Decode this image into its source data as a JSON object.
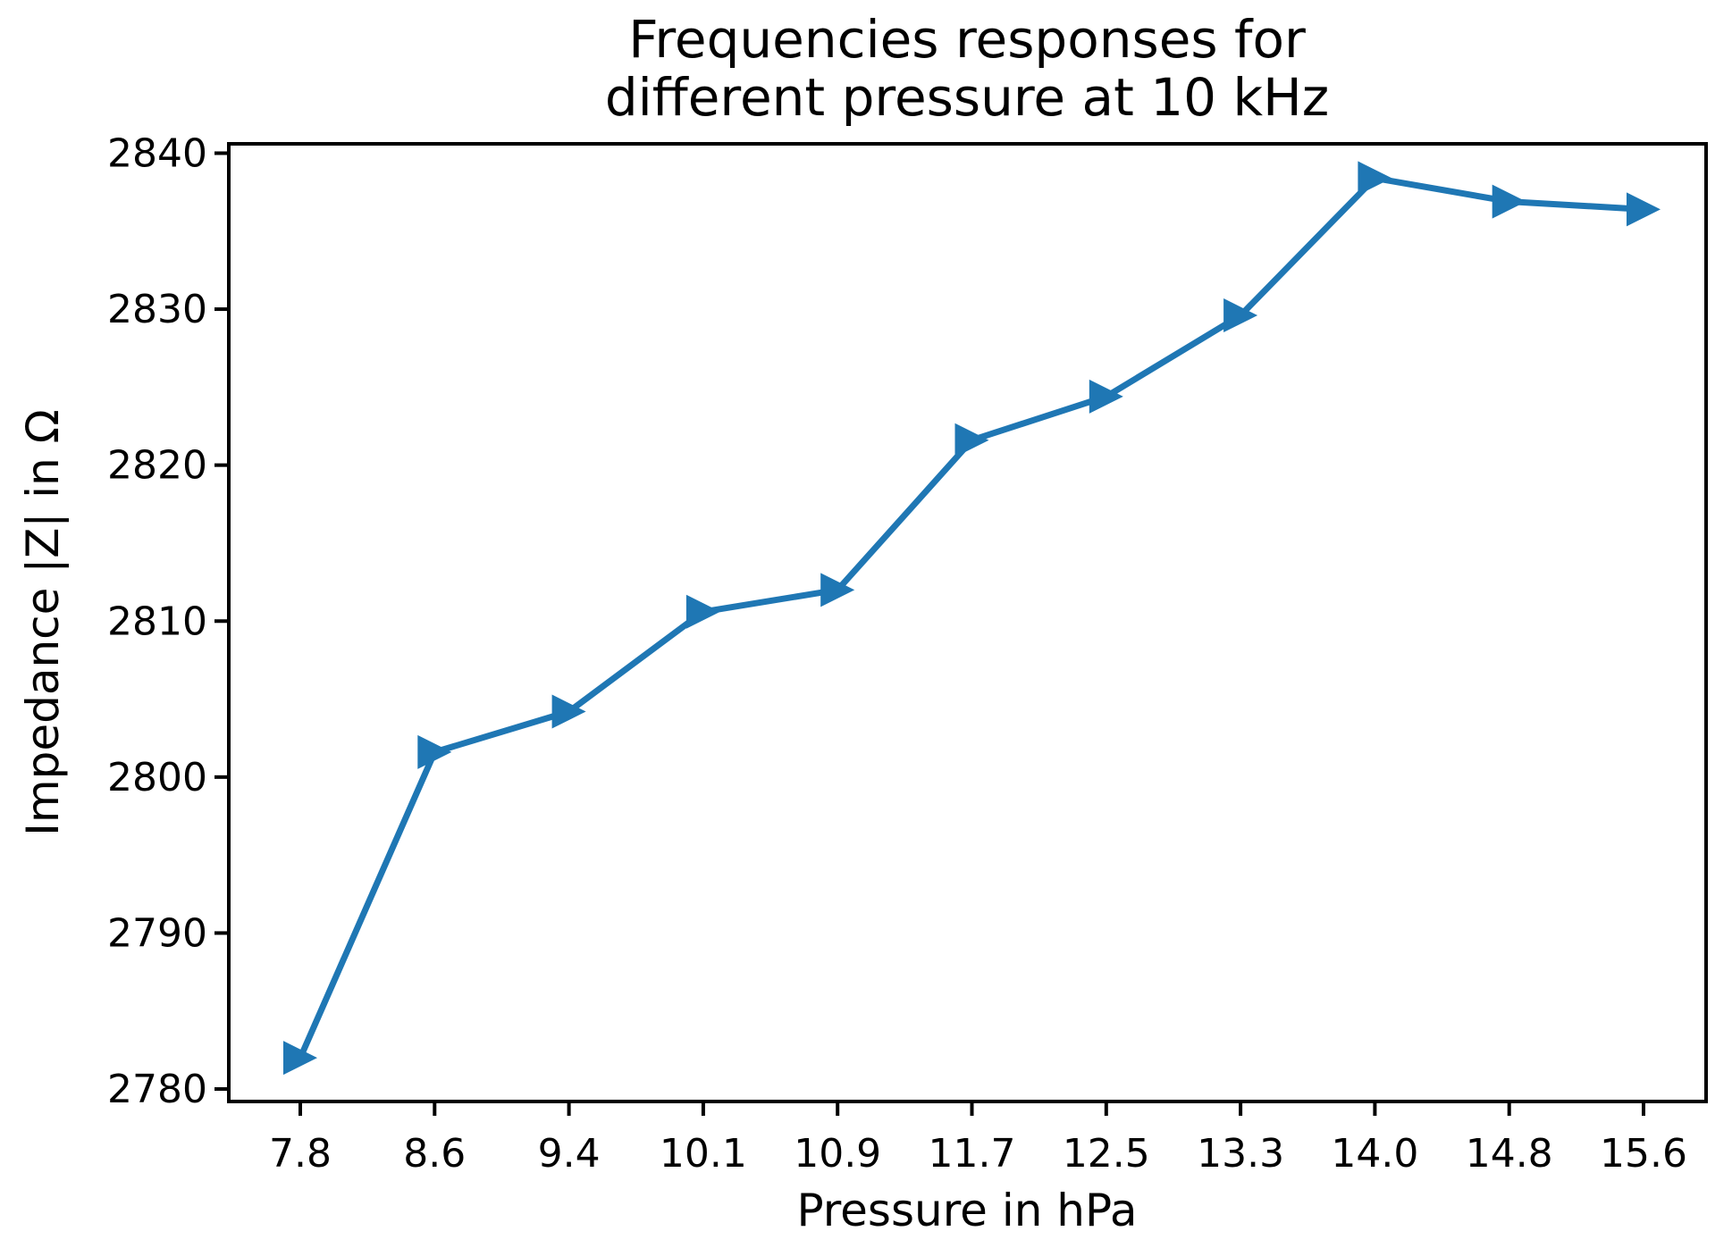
{
  "figure": {
    "background": "#ffffff"
  },
  "colors": {
    "series": "#1f77b4",
    "text": "#000000",
    "spine": "#000000",
    "background": "#ffffff"
  },
  "chart_data": {
    "type": "line",
    "title_lines": [
      "Frequencies responses for",
      "different pressure at 10 kHz"
    ],
    "title": "Frequencies responses for\ndifferent pressure at 10 kHz",
    "xlabel": "Pressure in hPa",
    "ylabel": "Impedance |Z| in Ω",
    "categories": [
      "7.8",
      "8.6",
      "9.4",
      "10.1",
      "10.9",
      "11.7",
      "12.5",
      "13.3",
      "14.0",
      "14.8",
      "15.6"
    ],
    "series": [
      {
        "name": "impedance-vs-pressure-10kHz",
        "values": [
          2782.0,
          2801.6,
          2804.2,
          2810.6,
          2812.0,
          2821.6,
          2824.4,
          2829.6,
          2838.4,
          2836.9,
          2836.4
        ],
        "color": "#1f77b4",
        "marker": "triangle-right",
        "line_width": 7
      }
    ],
    "y_ticks": [
      2780,
      2790,
      2800,
      2810,
      2820,
      2830,
      2840
    ],
    "y_tick_labels": [
      "2780",
      "2790",
      "2800",
      "2810",
      "2820",
      "2830",
      "2840"
    ],
    "ylim": [
      2779.2,
      2840.6
    ],
    "grid": false,
    "legend": null
  }
}
